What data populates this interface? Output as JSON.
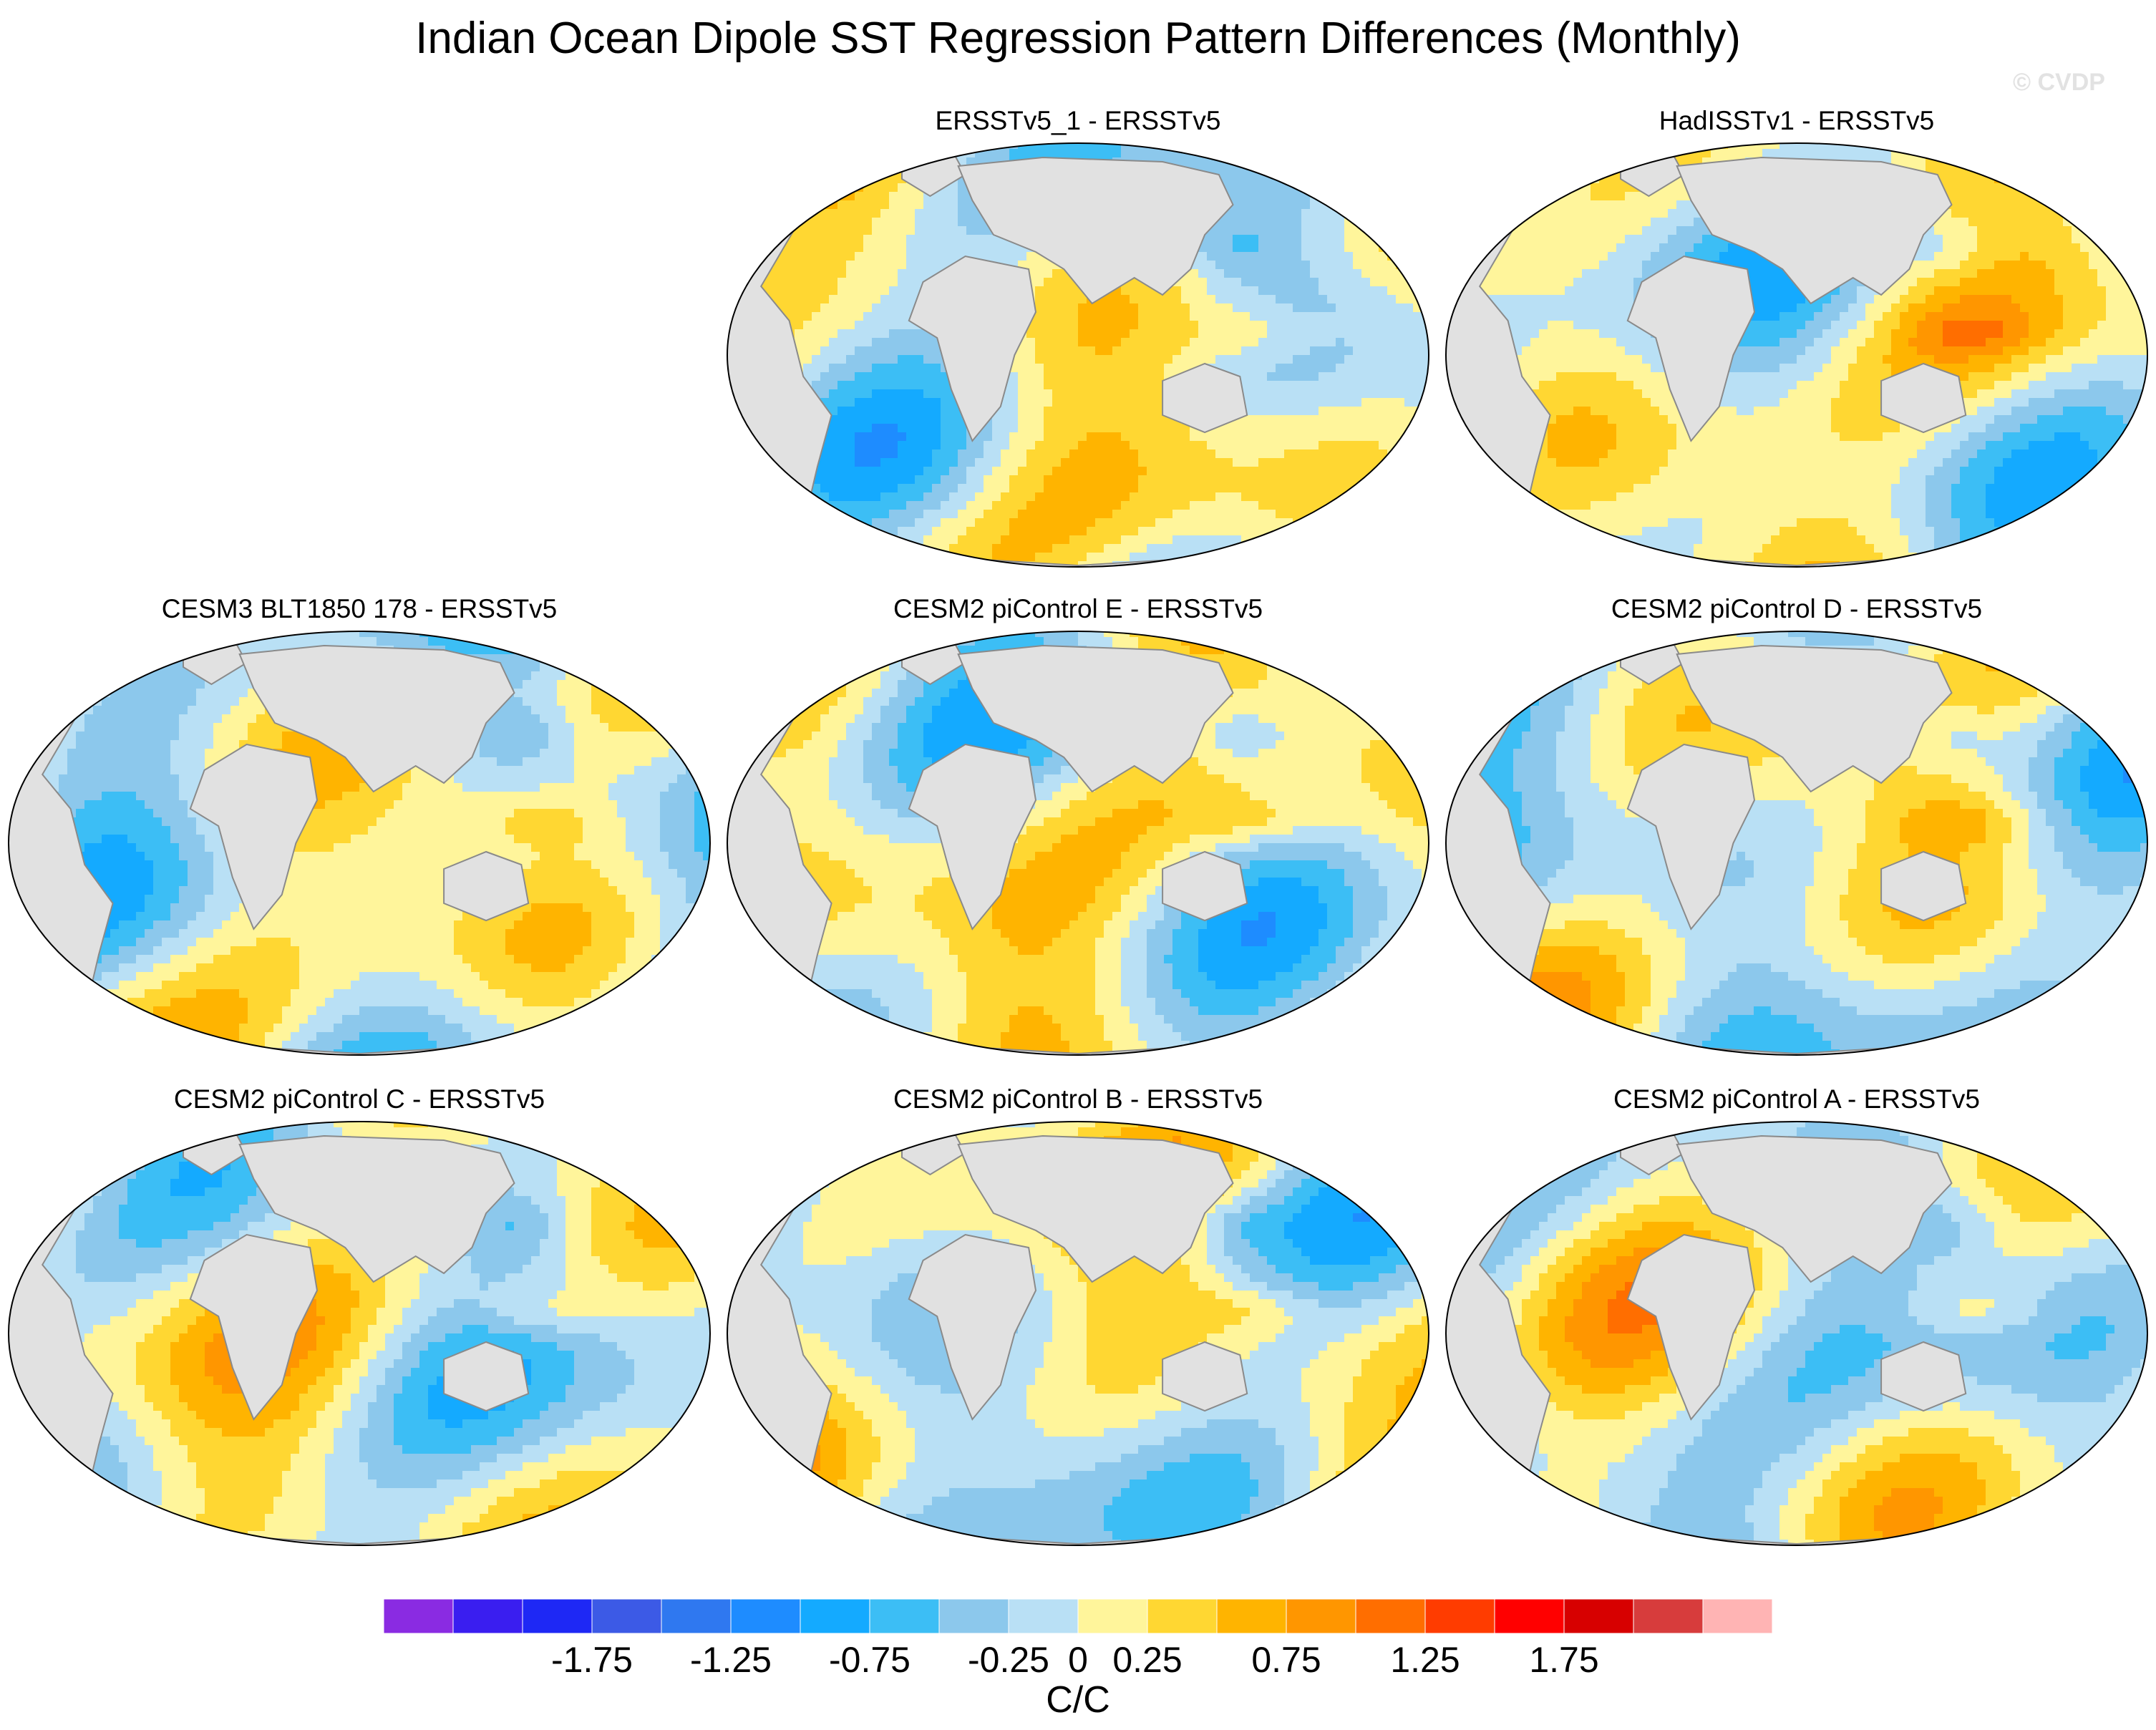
{
  "title": "Indian Ocean Dipole SST Regression Pattern Differences (Monthly)",
  "watermark": "© CVDP",
  "colors": {
    "land": "#e1e1e1",
    "coast": "#8a8a8a",
    "levels": [
      "#8a2be2",
      "#3a1ef0",
      "#1e28f5",
      "#3c5ae6",
      "#2f78f0",
      "#1e8cff",
      "#14aaff",
      "#3cbef5",
      "#8cc8ec",
      "#b9e0f5",
      "#fff59b",
      "#ffd732",
      "#ffb400",
      "#ff9600",
      "#ff6e00",
      "#ff3c00",
      "#ff0000",
      "#d70000",
      "#d73c3c",
      "#ffb4b4"
    ]
  },
  "chart_data": {
    "type": "heatmap",
    "projection": "Robinson (global)",
    "panels": [
      {
        "title": "ERSSTv5_1 - ERSSTv5"
      },
      {
        "title": "HadISSTv1 - ERSSTv5"
      },
      {
        "title": "CESM3 BLT1850 178 - ERSSTv5"
      },
      {
        "title": "CESM2 piControl E - ERSSTv5"
      },
      {
        "title": "CESM2 piControl D - ERSSTv5"
      },
      {
        "title": "CESM2 piControl C - ERSSTv5"
      },
      {
        "title": "CESM2 piControl B - ERSSTv5"
      },
      {
        "title": "CESM2 piControl A - ERSSTv5"
      }
    ],
    "colorbar": {
      "levels": [
        -2.25,
        -2,
        -1.75,
        -1.5,
        -1.25,
        -1,
        -0.75,
        -0.5,
        -0.25,
        0,
        0.25,
        0.5,
        0.75,
        1,
        1.25,
        1.5,
        1.75,
        2,
        2.25
      ],
      "tick_labels": [
        "-1.75",
        "-1.25",
        "-0.75",
        "-0.25",
        "0",
        "0.25",
        "0.75",
        "1.25",
        "1.75"
      ],
      "tick_values": [
        -1.75,
        -1.25,
        -0.75,
        -0.25,
        0,
        0.25,
        0.75,
        1.25,
        1.75
      ],
      "units": "C/C"
    }
  }
}
